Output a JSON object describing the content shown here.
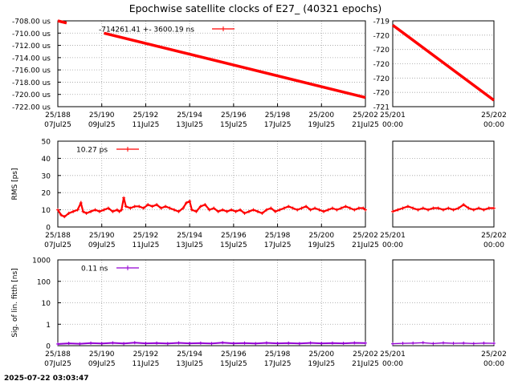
{
  "chart_data": {
    "type": "line",
    "title": "Epochwise satellite clocks of E27_ (40321 epochs)",
    "timestamp": "2025-07-22 03:03:47",
    "colors": {
      "series": "#ff0000",
      "sigma": "#9400d3",
      "grid": "#a0a0a0",
      "frame": "#000000"
    },
    "grid": true,
    "main_x": {
      "range": [
        188,
        202
      ],
      "ticks": [
        {
          "x": 188,
          "day": "25/188",
          "date": "07Jul25"
        },
        {
          "x": 190,
          "day": "25/190",
          "date": "09Jul25"
        },
        {
          "x": 192,
          "day": "25/192",
          "date": "11Jul25"
        },
        {
          "x": 194,
          "day": "25/194",
          "date": "13Jul25"
        },
        {
          "x": 196,
          "day": "25/196",
          "date": "15Jul25"
        },
        {
          "x": 198,
          "day": "25/198",
          "date": "17Jul25"
        },
        {
          "x": 200,
          "day": "25/200",
          "date": "19Jul25"
        },
        {
          "x": 202,
          "day": "25/202",
          "date": "21Jul25"
        }
      ]
    },
    "zoom_x": {
      "range": [
        201,
        202
      ],
      "ticks": [
        {
          "x": 201,
          "day": "25/201",
          "date": "00:00"
        },
        {
          "x": 202,
          "day": "25/202",
          "date": "00:00"
        }
      ]
    },
    "panels": [
      {
        "id": "clock",
        "ylabel": "",
        "ylim": [
          -722,
          -708
        ],
        "yticks": [
          "-722.00 us",
          "-720.00 us",
          "-718.00 us",
          "-716.00 us",
          "-714.00 us",
          "-712.00 us",
          "-710.00 us",
          "-708.00 us"
        ],
        "legend": {
          "text": "-714261.41 +-    3600.19 ns",
          "position": "top-center"
        },
        "zoom_ylim": [
          -721,
          -719
        ],
        "zoom_yticks": [
          "-721",
          "-720",
          "-720",
          "-720",
          "-720",
          "-720",
          "-719"
        ],
        "main_segments": [
          {
            "x": [
              188,
              188.4
            ],
            "y": [
              -708.0,
              -708.35
            ]
          },
          {
            "x": [
              190.1,
              202
            ],
            "y": [
              -710.0,
              -720.5
            ]
          }
        ],
        "zoom_segments": [
          {
            "x": [
              201.0,
              202.0
            ],
            "y": [
              -719.1,
              -720.85
            ]
          }
        ]
      },
      {
        "id": "rms",
        "ylabel": "RMS [ps]",
        "ylim": [
          0,
          50
        ],
        "yticks": [
          "0",
          "10",
          "20",
          "30",
          "40",
          "50"
        ],
        "legend": {
          "text": "10.27 ps",
          "position": "top-left"
        },
        "main_points": {
          "x": [
            188.0,
            188.15,
            188.3,
            188.5,
            188.7,
            188.9,
            189.05,
            189.15,
            189.3,
            189.5,
            189.7,
            189.9,
            190.1,
            190.3,
            190.5,
            190.7,
            190.8,
            190.9,
            191.0,
            191.1,
            191.3,
            191.5,
            191.7,
            191.9,
            192.1,
            192.3,
            192.5,
            192.7,
            192.9,
            193.1,
            193.3,
            193.5,
            193.7,
            193.85,
            194.0,
            194.1,
            194.3,
            194.5,
            194.7,
            194.9,
            195.1,
            195.3,
            195.5,
            195.7,
            195.9,
            196.1,
            196.3,
            196.5,
            196.7,
            196.9,
            197.1,
            197.3,
            197.5,
            197.7,
            197.9,
            198.1,
            198.3,
            198.5,
            198.7,
            198.9,
            199.1,
            199.3,
            199.5,
            199.7,
            199.9,
            200.1,
            200.3,
            200.5,
            200.7,
            200.9,
            201.1,
            201.3,
            201.5,
            201.7,
            201.9,
            202.0
          ],
          "y": [
            10,
            7,
            6,
            8,
            9,
            10,
            14,
            9,
            8,
            9,
            10,
            9,
            10,
            11,
            9,
            10,
            9,
            10,
            17,
            12,
            11,
            12,
            12,
            11,
            13,
            12,
            13,
            11,
            12,
            11,
            10,
            9,
            11,
            14,
            15,
            10,
            9,
            12,
            13,
            10,
            11,
            9,
            10,
            9,
            10,
            9,
            10,
            8,
            9,
            10,
            9,
            8,
            10,
            11,
            9,
            10,
            11,
            12,
            11,
            10,
            11,
            12,
            10,
            11,
            10,
            9,
            10,
            11,
            10,
            11,
            12,
            11,
            10,
            11,
            11,
            10
          ]
        },
        "zoom_points": {
          "x": [
            201.0,
            201.05,
            201.1,
            201.15,
            201.2,
            201.25,
            201.3,
            201.35,
            201.4,
            201.45,
            201.5,
            201.55,
            201.6,
            201.65,
            201.7,
            201.75,
            201.8,
            201.85,
            201.9,
            201.95,
            202.0
          ],
          "y": [
            9,
            10,
            11,
            12,
            11,
            10,
            11,
            10,
            11,
            11,
            10,
            11,
            10,
            11,
            13,
            11,
            10,
            11,
            10,
            11,
            11
          ]
        }
      },
      {
        "id": "sigma",
        "ylabel": "Sig. of lin. fitth [ns]",
        "log": true,
        "ylim": [
          0,
          1000
        ],
        "yticks": [
          "0",
          "1",
          "10",
          "100",
          "1000"
        ],
        "legend": {
          "text": "0.11 ns",
          "position": "top-left"
        },
        "main_points": {
          "x": [
            188.0,
            188.5,
            189.0,
            189.5,
            190.0,
            190.5,
            191.0,
            191.5,
            192.0,
            192.5,
            193.0,
            193.5,
            194.0,
            194.5,
            195.0,
            195.5,
            196.0,
            196.5,
            197.0,
            197.5,
            198.0,
            198.5,
            199.0,
            199.5,
            200.0,
            200.5,
            201.0,
            201.5,
            202.0
          ],
          "y": [
            0.08,
            0.11,
            0.09,
            0.12,
            0.1,
            0.13,
            0.1,
            0.14,
            0.11,
            0.12,
            0.1,
            0.13,
            0.11,
            0.12,
            0.1,
            0.14,
            0.11,
            0.12,
            0.1,
            0.13,
            0.11,
            0.12,
            0.1,
            0.13,
            0.11,
            0.12,
            0.11,
            0.13,
            0.12
          ]
        },
        "zoom_points": {
          "x": [
            201.0,
            201.1,
            201.2,
            201.3,
            201.4,
            201.5,
            201.6,
            201.7,
            201.8,
            201.9,
            202.0
          ],
          "y": [
            0.09,
            0.11,
            0.12,
            0.14,
            0.1,
            0.13,
            0.11,
            0.12,
            0.1,
            0.12,
            0.11
          ]
        }
      }
    ]
  }
}
